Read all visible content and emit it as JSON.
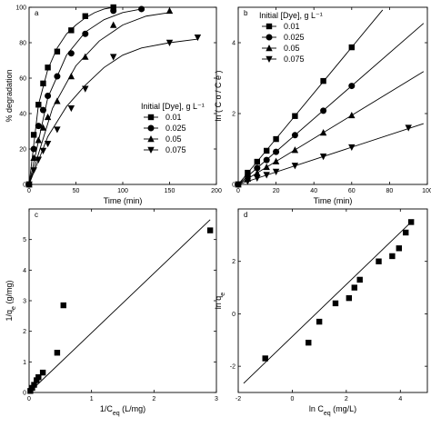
{
  "chart_data": [
    {
      "panel": "a",
      "type": "line",
      "xlabel": "Time (min)",
      "ylabel": "% degradation",
      "xlim": [
        0,
        200
      ],
      "ylim": [
        0,
        100
      ],
      "xticks": [
        0,
        50,
        100,
        150,
        200
      ],
      "yticks": [
        0,
        20,
        40,
        60,
        80,
        100
      ],
      "legend_title": "Initial [Dye], g L⁻¹",
      "legend_placement": "center-right",
      "series": [
        {
          "name": "0.01",
          "marker": "square",
          "x": [
            0,
            5,
            10,
            15,
            20,
            30,
            45,
            60,
            90
          ],
          "y": [
            0,
            28,
            45,
            57,
            66,
            75,
            87,
            95,
            100
          ],
          "fit_x": [
            0,
            10,
            20,
            30,
            40,
            50,
            60,
            70,
            80,
            90
          ],
          "fit_y": [
            0,
            45,
            65,
            77,
            85,
            90,
            94,
            97,
            99,
            100
          ]
        },
        {
          "name": "0.025",
          "marker": "circle",
          "x": [
            0,
            5,
            10,
            15,
            20,
            30,
            45,
            60,
            90,
            120
          ],
          "y": [
            0,
            20,
            33,
            42,
            50,
            61,
            74,
            85,
            98,
            99
          ],
          "fit_x": [
            0,
            20,
            40,
            60,
            80,
            100,
            120
          ],
          "fit_y": [
            0,
            49,
            73,
            86,
            93,
            97,
            99
          ]
        },
        {
          "name": "0.05",
          "marker": "triangle-up",
          "x": [
            0,
            5,
            10,
            15,
            20,
            30,
            45,
            60,
            90,
            150
          ],
          "y": [
            0,
            15,
            25,
            32,
            38,
            47,
            61,
            72,
            90,
            98
          ],
          "fit_x": [
            0,
            25,
            50,
            75,
            100,
            125,
            150
          ],
          "fit_y": [
            0,
            43,
            67,
            81,
            90,
            95,
            97
          ]
        },
        {
          "name": "0.075",
          "marker": "triangle-down",
          "x": [
            0,
            5,
            10,
            15,
            20,
            30,
            45,
            60,
            90,
            150,
            180
          ],
          "y": [
            0,
            8,
            14,
            19,
            23,
            31,
            43,
            54,
            72,
            80,
            83
          ],
          "fit_x": [
            0,
            20,
            40,
            60,
            80,
            100,
            120,
            150,
            180
          ],
          "fit_y": [
            0,
            27,
            44,
            56,
            66,
            73,
            77,
            80,
            82
          ]
        }
      ]
    },
    {
      "panel": "b",
      "type": "scatter",
      "xlabel": "Time (min)",
      "ylabel": "ln ( C o / C e )",
      "xlim": [
        0,
        100
      ],
      "ylim": [
        0,
        5
      ],
      "xticks": [
        0,
        20,
        40,
        60,
        80,
        100
      ],
      "yticks": [
        0,
        2,
        4
      ],
      "legend_title": "Initial [Dye], g L⁻¹",
      "legend_placement": "top-left",
      "series": [
        {
          "name": "0.01",
          "marker": "square",
          "x": [
            0,
            5,
            10,
            15,
            20,
            30,
            45,
            60
          ],
          "y": [
            0,
            0.33,
            0.64,
            0.95,
            1.28,
            1.93,
            2.92,
            3.87
          ],
          "slope": 0.0645
        },
        {
          "name": "0.025",
          "marker": "circle",
          "x": [
            0,
            5,
            10,
            15,
            20,
            30,
            45,
            60
          ],
          "y": [
            0,
            0.23,
            0.46,
            0.69,
            0.92,
            1.39,
            2.08,
            2.78
          ],
          "slope": 0.0464
        },
        {
          "name": "0.05",
          "marker": "triangle-up",
          "x": [
            0,
            5,
            10,
            15,
            20,
            30,
            45,
            60
          ],
          "y": [
            0,
            0.16,
            0.32,
            0.49,
            0.65,
            0.97,
            1.46,
            1.95
          ],
          "slope": 0.0325
        },
        {
          "name": "0.075",
          "marker": "triangle-down",
          "x": [
            0,
            5,
            10,
            15,
            20,
            30,
            45,
            60,
            90
          ],
          "y": [
            0,
            0.09,
            0.18,
            0.27,
            0.36,
            0.53,
            0.79,
            1.05,
            1.6
          ],
          "slope": 0.0175
        }
      ]
    },
    {
      "panel": "c",
      "type": "scatter",
      "xlabel": "1/C_eq (L/mg)",
      "ylabel": "1/q_e (g/mg)",
      "xlim": [
        0,
        3
      ],
      "ylim": [
        0,
        6
      ],
      "xticks": [
        0,
        1,
        2,
        3
      ],
      "yticks": [
        0,
        1,
        2,
        3,
        4,
        5
      ],
      "series": [
        {
          "name": "",
          "marker": "square",
          "x": [
            0.02,
            0.05,
            0.08,
            0.12,
            0.15,
            0.22,
            0.45,
            0.55,
            2.9
          ],
          "y": [
            0.05,
            0.15,
            0.25,
            0.4,
            0.5,
            0.65,
            1.3,
            2.85,
            5.3
          ]
        }
      ],
      "fit_line": {
        "x": [
          0,
          2.9
        ],
        "y": [
          0,
          5.65
        ]
      }
    },
    {
      "panel": "d",
      "type": "scatter",
      "xlabel": "ln C_eq (mg/L)",
      "ylabel": "ln q_e",
      "xlim": [
        -2,
        5
      ],
      "ylim": [
        -3,
        4
      ],
      "xticks": [
        -2,
        0,
        2,
        4
      ],
      "yticks": [
        -2,
        0,
        2
      ],
      "series": [
        {
          "name": "",
          "marker": "square",
          "x": [
            -1.0,
            0.6,
            1.0,
            1.6,
            2.1,
            2.3,
            2.5,
            3.2,
            3.7,
            3.95,
            4.2,
            4.4
          ],
          "y": [
            -1.7,
            -1.1,
            -0.3,
            0.4,
            0.6,
            1.0,
            1.3,
            2.0,
            2.2,
            2.5,
            3.1,
            3.5
          ]
        }
      ],
      "fit_line": {
        "x": [
          -1.8,
          4.5
        ],
        "y": [
          -2.65,
          3.6
        ]
      }
    }
  ],
  "panel_labels": [
    "a",
    "b",
    "c",
    "d"
  ]
}
